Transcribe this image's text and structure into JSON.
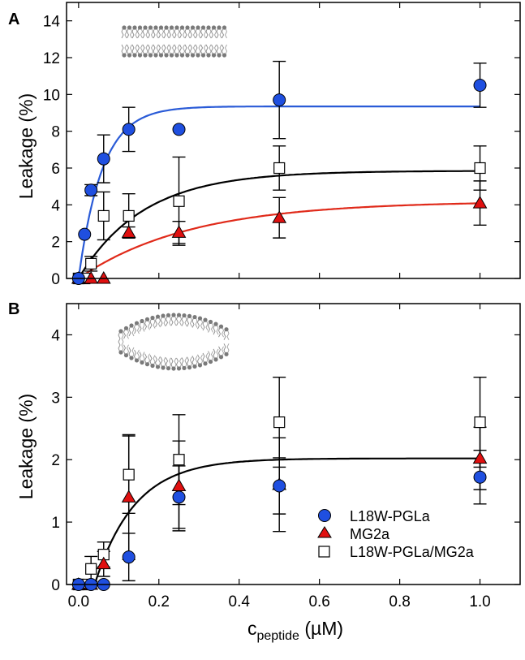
{
  "figure": {
    "xlabel_main": "c",
    "xlabel_sub": "peptide",
    "xlabel_unit": " (µM)"
  },
  "colors": {
    "pgla": "#1f4fe0",
    "pgla_line": "#2a5bd7",
    "mg2a": "#e01010",
    "mg2a_line": "#e02a1a",
    "mix": "#ffffff",
    "mix_line": "#000000",
    "fit_b": "#000000"
  },
  "legend": [
    {
      "key": "pgla",
      "label": "L18W-PGLa"
    },
    {
      "key": "mg2a",
      "label": "MG2a"
    },
    {
      "key": "mix",
      "label": "L18W-PGLa/MG2a"
    }
  ],
  "chart_data": [
    {
      "panel": "A",
      "type": "scatter",
      "ylabel": "Leakage (%)",
      "xlabel": "c_peptide (µM)",
      "xlim": [
        -0.03,
        1.1
      ],
      "ylim": [
        0,
        15
      ],
      "xticks": [
        "0.0",
        "0.2",
        "0.4",
        "0.6",
        "0.8",
        "1.0"
      ],
      "xtick_values": [
        0,
        0.2,
        0.4,
        0.6,
        0.8,
        1.0
      ],
      "yticks": [
        "0",
        "2",
        "4",
        "6",
        "8",
        "10",
        "12",
        "14"
      ],
      "ytick_values": [
        0,
        2,
        4,
        6,
        8,
        10,
        12,
        14
      ],
      "inset_icon": "flat-lipid-bilayer-icon",
      "series": [
        {
          "key": "pgla",
          "name": "L18W-PGLa",
          "marker": "circle",
          "points": [
            {
              "x": 0.0,
              "y": 0.0,
              "err": 0
            },
            {
              "x": 0.015,
              "y": 2.4,
              "err": 0
            },
            {
              "x": 0.031,
              "y": 4.8,
              "err": 0.3
            },
            {
              "x": 0.0625,
              "y": 6.5,
              "err": 1.3
            },
            {
              "x": 0.125,
              "y": 8.1,
              "err": 1.2
            },
            {
              "x": 0.25,
              "y": 8.1,
              "err": 0
            },
            {
              "x": 0.5,
              "y": 9.7,
              "err": 2.1
            },
            {
              "x": 1.0,
              "y": 10.5,
              "err": 1.2
            }
          ],
          "fit": {
            "ymax": 9.35,
            "k": 17
          }
        },
        {
          "key": "mg2a",
          "name": "MG2a",
          "marker": "triangle",
          "points": [
            {
              "x": 0.0,
              "y": 0.0,
              "err": 0
            },
            {
              "x": 0.031,
              "y": 0.0,
              "err": 0
            },
            {
              "x": 0.0625,
              "y": 0.0,
              "err": 0
            },
            {
              "x": 0.125,
              "y": 2.5,
              "err": 0.3
            },
            {
              "x": 0.25,
              "y": 2.5,
              "err": 0.6
            },
            {
              "x": 0.5,
              "y": 3.3,
              "err": 1.1
            },
            {
              "x": 1.0,
              "y": 4.1,
              "err": 1.2
            }
          ],
          "fit": {
            "ymax": 4.2,
            "k": 3.6
          }
        },
        {
          "key": "mix",
          "name": "L18W-PGLa/MG2a",
          "marker": "square",
          "points": [
            {
              "x": 0.0,
              "y": 0.0,
              "err": 0
            },
            {
              "x": 0.015,
              "y": 0.0,
              "err": 0
            },
            {
              "x": 0.031,
              "y": 0.8,
              "err": 0.4
            },
            {
              "x": 0.0625,
              "y": 3.4,
              "err": 1.3
            },
            {
              "x": 0.125,
              "y": 3.4,
              "err": 1.2
            },
            {
              "x": 0.25,
              "y": 4.2,
              "err": 2.4
            },
            {
              "x": 0.5,
              "y": 6.0,
              "err": 1.2
            },
            {
              "x": 1.0,
              "y": 6.0,
              "err": 1.2
            }
          ],
          "fit": {
            "ymax": 5.85,
            "k": 6.2
          }
        }
      ]
    },
    {
      "panel": "B",
      "type": "scatter",
      "ylabel": "Leakage (%)",
      "xlabel": "c_peptide (µM)",
      "xlim": [
        -0.03,
        1.1
      ],
      "ylim": [
        0,
        4.5
      ],
      "xticks": [
        "0.0",
        "0.2",
        "0.4",
        "0.6",
        "0.8",
        "1.0"
      ],
      "xtick_values": [
        0,
        0.2,
        0.4,
        0.6,
        0.8,
        1.0
      ],
      "yticks": [
        "0",
        "1",
        "2",
        "3",
        "4"
      ],
      "ytick_values": [
        0,
        1,
        2,
        3,
        4
      ],
      "inset_icon": "curved-lipid-bilayer-icon",
      "legend_position": "bottom-right",
      "series": [
        {
          "key": "pgla",
          "name": "L18W-PGLa",
          "marker": "circle",
          "points": [
            {
              "x": 0.0,
              "y": 0.0,
              "err": 0
            },
            {
              "x": 0.031,
              "y": 0.0,
              "err": 0
            },
            {
              "x": 0.0625,
              "y": 0.0,
              "err": 0
            },
            {
              "x": 0.125,
              "y": 0.44,
              "err": 0.38
            },
            {
              "x": 0.25,
              "y": 1.4,
              "err": 0.5
            },
            {
              "x": 0.5,
              "y": 1.58,
              "err": 0.45
            },
            {
              "x": 1.0,
              "y": 1.72,
              "err": 0.43
            }
          ]
        },
        {
          "key": "mg2a",
          "name": "MG2a",
          "marker": "triangle",
          "points": [
            {
              "x": 0.0,
              "y": 0.0,
              "err": 0
            },
            {
              "x": 0.031,
              "y": 0.0,
              "err": 0
            },
            {
              "x": 0.0625,
              "y": 0.33,
              "err": 0.2
            },
            {
              "x": 0.125,
              "y": 1.4,
              "err": 1.0
            },
            {
              "x": 0.25,
              "y": 1.58,
              "err": 0.72
            },
            {
              "x": 0.5,
              "y": 1.6,
              "err": 0.75
            },
            {
              "x": 1.0,
              "y": 2.02,
              "err": 0.5
            }
          ]
        },
        {
          "key": "mix",
          "name": "L18W-PGLa/MG2a",
          "marker": "square",
          "points": [
            {
              "x": 0.0,
              "y": 0.0,
              "err": 0
            },
            {
              "x": 0.015,
              "y": 0.0,
              "err": 0
            },
            {
              "x": 0.031,
              "y": 0.25,
              "err": 0.2
            },
            {
              "x": 0.0625,
              "y": 0.48,
              "err": 0.2
            },
            {
              "x": 0.125,
              "y": 1.76,
              "err": 0.62
            },
            {
              "x": 0.25,
              "y": 2.0,
              "err": 0.72
            },
            {
              "x": 0.5,
              "y": 2.6,
              "err": 0.72
            },
            {
              "x": 1.0,
              "y": 2.6,
              "err": 0.72
            }
          ]
        }
      ],
      "fit": {
        "ymax": 2.02,
        "k": 10,
        "x0": 0.04,
        "color_key": "fit_b"
      }
    }
  ]
}
